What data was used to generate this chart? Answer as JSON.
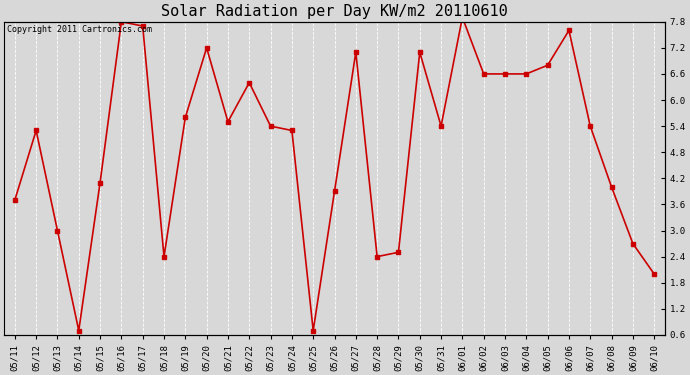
{
  "title": "Solar Radiation per Day KW/m2 20110610",
  "copyright": "Copyright 2011 Cartronics.com",
  "dates": [
    "05/11",
    "05/12",
    "05/13",
    "05/14",
    "05/15",
    "05/16",
    "05/17",
    "05/18",
    "05/19",
    "05/20",
    "05/21",
    "05/22",
    "05/23",
    "05/24",
    "05/25",
    "05/26",
    "05/27",
    "05/28",
    "05/29",
    "05/30",
    "05/31",
    "06/01",
    "06/02",
    "06/03",
    "06/04",
    "06/05",
    "06/06",
    "06/07",
    "06/08",
    "06/09",
    "06/10"
  ],
  "values": [
    3.7,
    5.3,
    3.0,
    0.7,
    4.1,
    7.8,
    7.7,
    2.4,
    5.6,
    7.2,
    5.5,
    6.4,
    5.4,
    5.3,
    0.7,
    3.9,
    7.1,
    2.4,
    2.5,
    7.1,
    5.4,
    7.9,
    6.6,
    6.6,
    6.6,
    6.8,
    7.6,
    5.4,
    4.0,
    2.7,
    2.0
  ],
  "line_color": "#cc0000",
  "marker": "s",
  "marker_size": 2.5,
  "line_width": 1.2,
  "ylim": [
    0.6,
    7.8
  ],
  "yticks": [
    0.6,
    1.2,
    1.8,
    2.4,
    3.0,
    3.6,
    4.2,
    4.8,
    5.4,
    6.0,
    6.6,
    7.2,
    7.8
  ],
  "background_color": "#d8d8d8",
  "plot_bg_color": "#d8d8d8",
  "title_fontsize": 11,
  "copyright_fontsize": 6,
  "tick_fontsize": 6.5,
  "grid_color": "#ffffff",
  "grid_linestyle": "--",
  "grid_linewidth": 0.6
}
